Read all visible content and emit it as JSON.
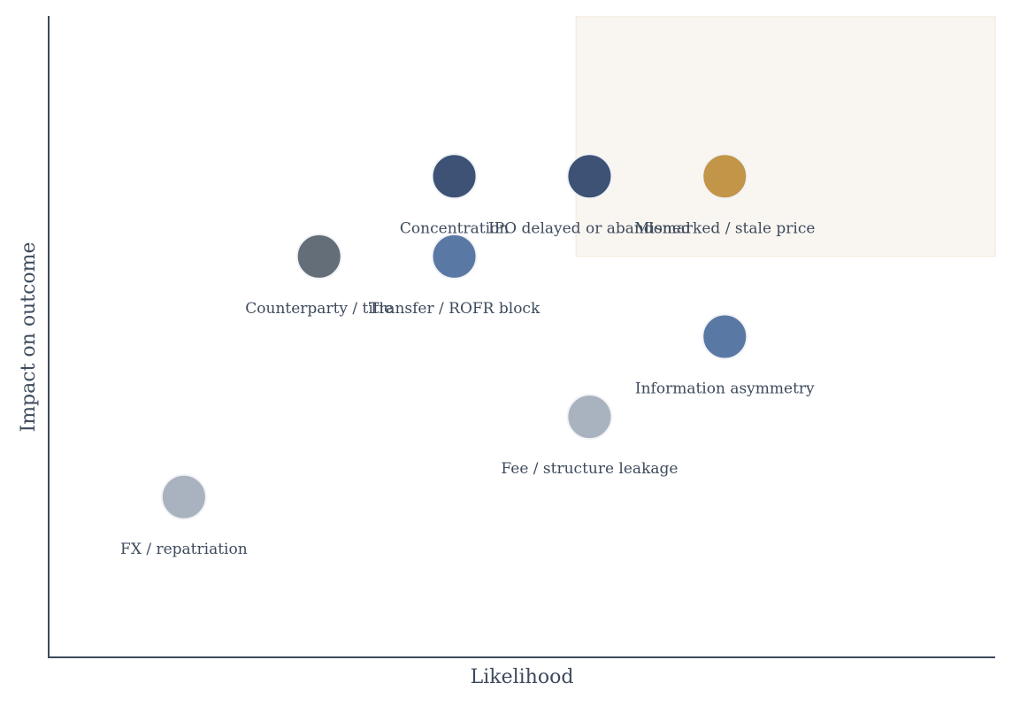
{
  "chart_data": {
    "type": "scatter",
    "title": "",
    "xlabel": "Likelihood",
    "ylabel": "Impact on outcome",
    "xlim": [
      0,
      7
    ],
    "ylim": [
      0,
      8
    ],
    "grid": false,
    "highlight_zone": {
      "x": [
        3.9,
        7
      ],
      "y": [
        5,
        8
      ]
    },
    "points": [
      {
        "label": "Concentration",
        "x": 3,
        "y": 6,
        "color": "#3d5275"
      },
      {
        "label": "IPO delayed or abandoned",
        "x": 4,
        "y": 6,
        "color": "#3d5275"
      },
      {
        "label": "Mismarked / stale price",
        "x": 5,
        "y": 6,
        "color": "#c29548"
      },
      {
        "label": "Counterparty / title",
        "x": 2,
        "y": 5,
        "color": "#646e78"
      },
      {
        "label": "Transfer / ROFR block",
        "x": 3,
        "y": 5,
        "color": "#5a78a4"
      },
      {
        "label": "Information asymmetry",
        "x": 5,
        "y": 4,
        "color": "#5a78a4"
      },
      {
        "label": "Fee / structure leakage",
        "x": 4,
        "y": 3,
        "color": "#a9b3bf"
      },
      {
        "label": "FX / repatriation",
        "x": 1,
        "y": 2,
        "color": "#a9b3bf"
      }
    ]
  }
}
